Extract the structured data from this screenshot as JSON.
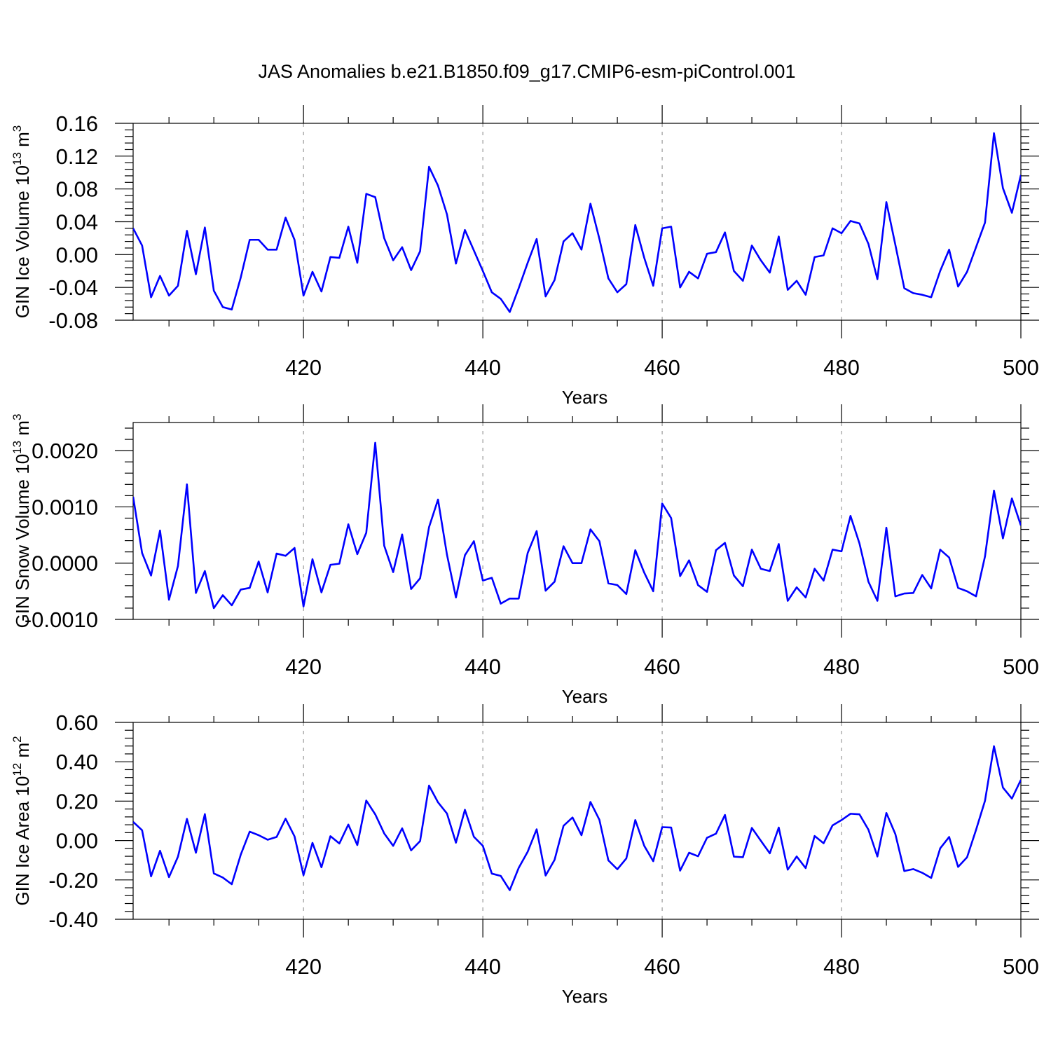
{
  "title": "JAS Anomalies b.e21.B1850.f09_g17.CMIP6-esm-piControl.001",
  "colors": {
    "line": "#0000ff",
    "axis": "#000000",
    "grid": "#999999",
    "background": "#ffffff"
  },
  "chart_data": [
    {
      "type": "line",
      "xlabel": "Years",
      "ylabel": {
        "main": "GIN Ice Volume 10",
        "exponent": "13",
        "unit": " m",
        "unit_exponent": "3"
      },
      "xlim": [
        401,
        500
      ],
      "ylim": [
        -0.08,
        0.16
      ],
      "xticks": [
        420,
        440,
        460,
        480,
        500
      ],
      "xtick_labels": [
        "420",
        "440",
        "460",
        "480",
        "500"
      ],
      "yticks": [
        -0.08,
        -0.04,
        0.0,
        0.04,
        0.08,
        0.12,
        0.16
      ],
      "ytick_labels": [
        "-0.08",
        "-0.04",
        "0.00",
        "0.04",
        "0.08",
        "0.12",
        "0.16"
      ],
      "grid": "vertical dashed at major x ticks",
      "series": [
        {
          "color": "#0000ff",
          "x_start": 401,
          "values": [
            0.032,
            0.011,
            -0.052,
            -0.026,
            -0.05,
            -0.038,
            0.029,
            -0.024,
            0.033,
            -0.044,
            -0.064,
            -0.067,
            -0.028,
            0.018,
            0.018,
            0.006,
            0.006,
            0.045,
            0.018,
            -0.05,
            -0.021,
            -0.045,
            -0.003,
            -0.004,
            0.034,
            -0.01,
            0.074,
            0.07,
            0.02,
            -0.007,
            0.009,
            -0.019,
            0.004,
            0.107,
            0.084,
            0.049,
            -0.011,
            0.03,
            0.005,
            -0.02,
            -0.046,
            -0.054,
            -0.07,
            -0.041,
            -0.01,
            0.019,
            -0.051,
            -0.031,
            0.016,
            0.026,
            0.006,
            0.062,
            0.019,
            -0.029,
            -0.046,
            -0.036,
            0.036,
            -0.004,
            -0.038,
            0.032,
            0.034,
            -0.04,
            -0.021,
            -0.029,
            0.001,
            0.003,
            0.027,
            -0.02,
            -0.032,
            0.011,
            -0.007,
            -0.022,
            0.022,
            -0.043,
            -0.032,
            -0.049,
            -0.003,
            -0.001,
            0.032,
            0.026,
            0.041,
            0.038,
            0.013,
            -0.03,
            0.064,
            0.012,
            -0.041,
            -0.047,
            -0.049,
            -0.052,
            -0.02,
            0.006,
            -0.039,
            -0.021,
            0.009,
            0.039,
            0.148,
            0.081,
            0.051,
            0.097
          ]
        }
      ]
    },
    {
      "type": "line",
      "xlabel": "Years",
      "ylabel": {
        "main": "GIN Snow Volume 10",
        "exponent": "13",
        "unit": " m",
        "unit_exponent": "3"
      },
      "xlim": [
        401,
        500
      ],
      "ylim": [
        -0.001,
        0.0025
      ],
      "xticks": [
        420,
        440,
        460,
        480,
        500
      ],
      "xtick_labels": [
        "420",
        "440",
        "460",
        "480",
        "500"
      ],
      "yticks": [
        -0.001,
        0.0,
        0.001,
        0.002
      ],
      "ytick_labels": [
        "-0.0010",
        "0.0000",
        "0.0010",
        "0.0020"
      ],
      "grid": "vertical dashed at major x ticks",
      "series": [
        {
          "color": "#0000ff",
          "x_start": 401,
          "values": [
            0.00118,
            0.00018,
            -0.00022,
            0.00058,
            -0.00065,
            -5e-05,
            0.0014,
            -0.00053,
            -0.00014,
            -0.0008,
            -0.00057,
            -0.00075,
            -0.00047,
            -0.00044,
            3e-05,
            -0.00052,
            0.00017,
            0.00013,
            0.00027,
            -0.00077,
            7e-05,
            -0.00052,
            -3e-05,
            -1e-05,
            0.00069,
            0.00016,
            0.00054,
            0.00214,
            0.00031,
            -0.00016,
            0.00051,
            -0.00046,
            -0.00027,
            0.00064,
            0.00113,
            0.00015,
            -0.00061,
            0.00014,
            0.00039,
            -0.00031,
            -0.00026,
            -0.00072,
            -0.00063,
            -0.00063,
            0.00018,
            0.00057,
            -0.00049,
            -0.00033,
            0.0003,
            0.0,
            0.0,
            0.0006,
            0.00039,
            -0.00036,
            -0.00039,
            -0.00055,
            0.00023,
            -0.00017,
            -0.0005,
            0.00106,
            0.0008,
            -0.00023,
            5e-05,
            -0.00039,
            -0.00051,
            0.00023,
            0.00036,
            -0.00022,
            -0.00041,
            0.00024,
            -0.0001,
            -0.00014,
            0.00034,
            -0.00067,
            -0.00043,
            -0.00061,
            -0.0001,
            -0.00031,
            0.00024,
            0.00021,
            0.00084,
            0.00035,
            -0.00033,
            -0.00067,
            0.00063,
            -0.00059,
            -0.00054,
            -0.00053,
            -0.00021,
            -0.00045,
            0.00024,
            0.0001,
            -0.00044,
            -0.0005,
            -0.00059,
            0.00012,
            0.00129,
            0.00044,
            0.00115,
            0.00067
          ]
        }
      ]
    },
    {
      "type": "line",
      "xlabel": "Years",
      "ylabel": {
        "main": "GIN Ice Area 10",
        "exponent": "12",
        "unit": " m",
        "unit_exponent": "2"
      },
      "xlim": [
        401,
        500
      ],
      "ylim": [
        -0.4,
        0.6
      ],
      "xticks": [
        420,
        440,
        460,
        480,
        500
      ],
      "xtick_labels": [
        "420",
        "440",
        "460",
        "480",
        "500"
      ],
      "yticks": [
        -0.4,
        -0.2,
        0.0,
        0.2,
        0.4,
        0.6
      ],
      "ytick_labels": [
        "-0.40",
        "-0.20",
        "0.00",
        "0.20",
        "0.40",
        "0.60"
      ],
      "grid": "vertical dashed at major x ticks",
      "series": [
        {
          "color": "#0000ff",
          "x_start": 401,
          "values": [
            0.095,
            0.052,
            -0.182,
            -0.052,
            -0.186,
            -0.082,
            0.11,
            -0.062,
            0.134,
            -0.167,
            -0.188,
            -0.222,
            -0.072,
            0.045,
            0.027,
            0.004,
            0.018,
            0.111,
            0.021,
            -0.176,
            -0.012,
            -0.136,
            0.022,
            -0.015,
            0.081,
            -0.023,
            0.203,
            0.133,
            0.036,
            -0.027,
            0.062,
            -0.05,
            -0.003,
            0.279,
            0.194,
            0.137,
            -0.011,
            0.156,
            0.019,
            -0.027,
            -0.168,
            -0.18,
            -0.252,
            -0.139,
            -0.057,
            0.057,
            -0.178,
            -0.098,
            0.075,
            0.117,
            0.027,
            0.196,
            0.105,
            -0.101,
            -0.146,
            -0.091,
            0.104,
            -0.027,
            -0.105,
            0.068,
            0.066,
            -0.153,
            -0.062,
            -0.08,
            0.014,
            0.035,
            0.13,
            -0.082,
            -0.085,
            0.064,
            -0.001,
            -0.065,
            0.066,
            -0.148,
            -0.081,
            -0.14,
            0.023,
            -0.014,
            0.077,
            0.104,
            0.136,
            0.133,
            0.055,
            -0.081,
            0.14,
            0.033,
            -0.155,
            -0.145,
            -0.164,
            -0.19,
            -0.04,
            0.018,
            -0.134,
            -0.085,
            0.054,
            0.202,
            0.479,
            0.269,
            0.213,
            0.308
          ]
        }
      ]
    }
  ]
}
